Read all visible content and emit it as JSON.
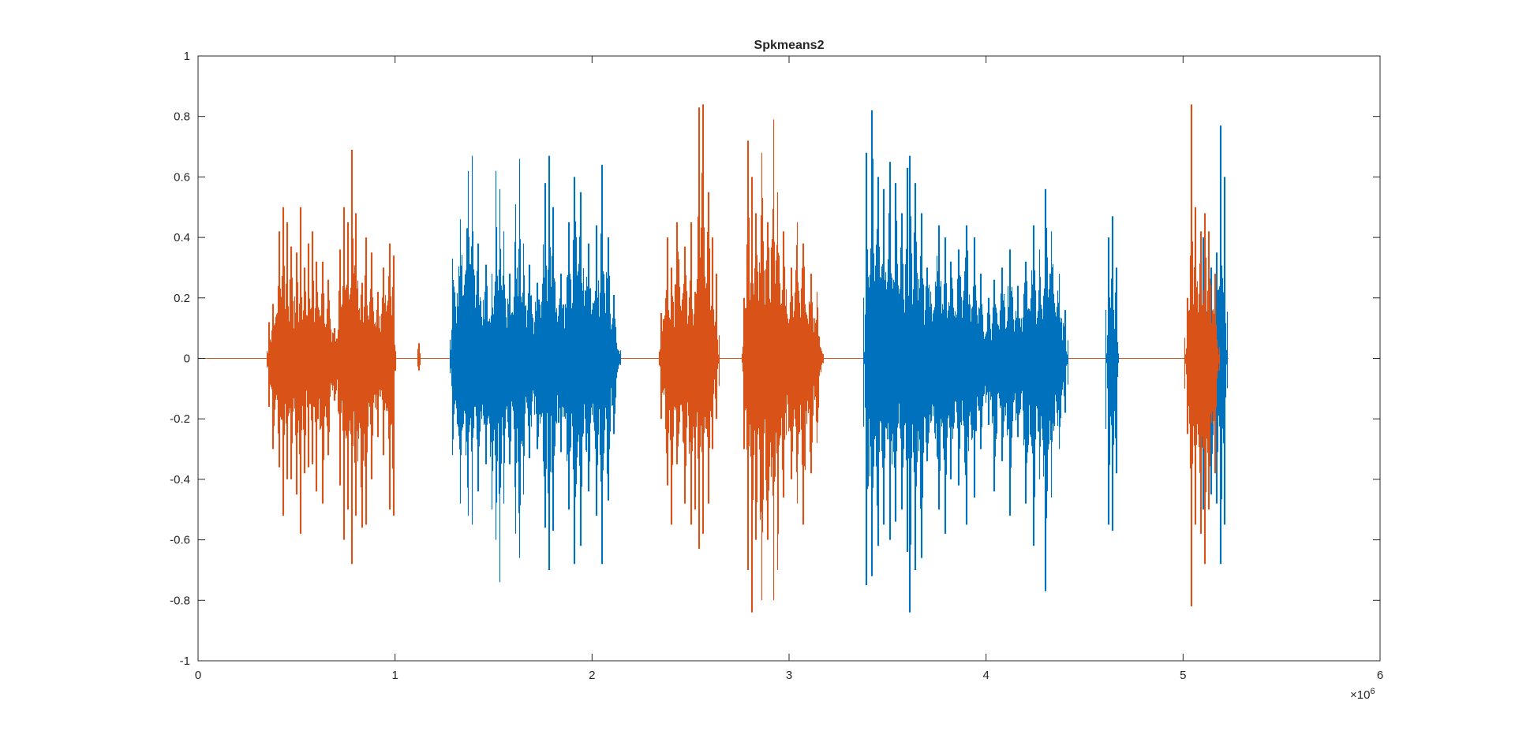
{
  "chart_data": {
    "type": "line",
    "title": "Spkmeans2",
    "xlabel": "",
    "ylabel": "",
    "xlim": [
      0,
      6000000
    ],
    "ylim": [
      -1,
      1
    ],
    "x_ticks": [
      0,
      1000000,
      2000000,
      3000000,
      4000000,
      5000000,
      6000000
    ],
    "x_tick_labels": [
      "0",
      "1",
      "2",
      "3",
      "4",
      "5",
      "6"
    ],
    "x_exponent_label": "×10",
    "x_exponent_power": "6",
    "y_ticks": [
      1,
      0.8,
      0.6,
      0.4,
      0.2,
      0,
      -0.2,
      -0.4,
      -0.6,
      -0.8,
      -1
    ],
    "y_tick_labels": [
      "1",
      "0.8",
      "0.6",
      "0.4",
      "0.2",
      "0",
      "-0.2",
      "-0.4",
      "-0.6",
      "-0.8",
      "-1"
    ],
    "grid": false,
    "box": true,
    "baseline": 0,
    "series": [
      {
        "color": "#0072BD",
        "segments": [
          {
            "start": 1280000,
            "end": 2140000,
            "peaks": [
              [
                1290000,
                0.33,
                -0.32
              ],
              [
                1330000,
                0.46,
                -0.48
              ],
              [
                1370000,
                0.62,
                -0.52
              ],
              [
                1390000,
                0.67,
                -0.55
              ],
              [
                1420000,
                0.38,
                -0.44
              ],
              [
                1460000,
                0.31,
                -0.35
              ],
              [
                1490000,
                0.28,
                -0.5
              ],
              [
                1510000,
                0.62,
                -0.6
              ],
              [
                1530000,
                0.56,
                -0.74
              ],
              [
                1550000,
                0.42,
                -0.48
              ],
              [
                1580000,
                0.28,
                -0.35
              ],
              [
                1610000,
                0.51,
                -0.58
              ],
              [
                1630000,
                0.66,
                -0.66
              ],
              [
                1650000,
                0.38,
                -0.45
              ],
              [
                1680000,
                0.31,
                -0.33
              ],
              [
                1720000,
                0.25,
                -0.3
              ],
              [
                1760000,
                0.58,
                -0.56
              ],
              [
                1780000,
                0.67,
                -0.7
              ],
              [
                1800000,
                0.5,
                -0.57
              ],
              [
                1840000,
                0.28,
                -0.31
              ],
              [
                1880000,
                0.45,
                -0.5
              ],
              [
                1910000,
                0.6,
                -0.68
              ],
              [
                1940000,
                0.55,
                -0.62
              ],
              [
                1980000,
                0.38,
                -0.44
              ],
              [
                2020000,
                0.44,
                -0.52
              ],
              [
                2050000,
                0.64,
                -0.68
              ],
              [
                2080000,
                0.4,
                -0.47
              ],
              [
                2110000,
                0.21,
                -0.25
              ]
            ]
          },
          {
            "start": 3380000,
            "end": 4410000,
            "peaks": [
              [
                3390000,
                0.68,
                -0.75
              ],
              [
                3420000,
                0.82,
                -0.72
              ],
              [
                3450000,
                0.6,
                -0.62
              ],
              [
                3480000,
                0.56,
                -0.55
              ],
              [
                3510000,
                0.65,
                -0.6
              ],
              [
                3540000,
                0.58,
                -0.54
              ],
              [
                3570000,
                0.48,
                -0.5
              ],
              [
                3600000,
                0.63,
                -0.64
              ],
              [
                3610000,
                0.67,
                -0.84
              ],
              [
                3640000,
                0.58,
                -0.7
              ],
              [
                3670000,
                0.48,
                -0.66
              ],
              [
                3700000,
                0.3,
                -0.34
              ],
              [
                3760000,
                0.44,
                -0.5
              ],
              [
                3790000,
                0.4,
                -0.58
              ],
              [
                3820000,
                0.32,
                -0.4
              ],
              [
                3860000,
                0.36,
                -0.42
              ],
              [
                3900000,
                0.44,
                -0.55
              ],
              [
                3940000,
                0.4,
                -0.46
              ],
              [
                3970000,
                0.28,
                -0.3
              ],
              [
                4010000,
                0.2,
                -0.22
              ],
              [
                4040000,
                0.26,
                -0.44
              ],
              [
                4080000,
                0.3,
                -0.34
              ],
              [
                4120000,
                0.36,
                -0.52
              ],
              [
                4160000,
                0.24,
                -0.26
              ],
              [
                4200000,
                0.32,
                -0.48
              ],
              [
                4240000,
                0.44,
                -0.62
              ],
              [
                4270000,
                0.36,
                -0.4
              ],
              [
                4300000,
                0.56,
                -0.77
              ],
              [
                4330000,
                0.42,
                -0.46
              ],
              [
                4370000,
                0.28,
                -0.3
              ],
              [
                4400000,
                0.16,
                -0.18
              ]
            ]
          },
          {
            "start": 4610000,
            "end": 4670000,
            "peaks": [
              [
                4620000,
                0.4,
                -0.55
              ],
              [
                4640000,
                0.47,
                -0.57
              ],
              [
                4660000,
                0.3,
                -0.38
              ]
            ]
          },
          {
            "start": 5080000,
            "end": 5220000,
            "peaks": [
              [
                5100000,
                0.4,
                -0.5
              ],
              [
                5140000,
                0.3,
                -0.45
              ],
              [
                5170000,
                0.35,
                -0.48
              ],
              [
                5190000,
                0.77,
                -0.68
              ],
              [
                5210000,
                0.6,
                -0.55
              ]
            ]
          }
        ]
      },
      {
        "color": "#D95319",
        "segments": [
          {
            "start": 350000,
            "end": 1000000,
            "peaks": [
              [
                360000,
                0.12,
                -0.16
              ],
              [
                380000,
                0.18,
                -0.3
              ],
              [
                410000,
                0.42,
                -0.36
              ],
              [
                430000,
                0.5,
                -0.52
              ],
              [
                450000,
                0.45,
                -0.4
              ],
              [
                470000,
                0.37,
                -0.4
              ],
              [
                500000,
                0.35,
                -0.45
              ],
              [
                520000,
                0.5,
                -0.58
              ],
              [
                540000,
                0.3,
                -0.38
              ],
              [
                560000,
                0.38,
                -0.36
              ],
              [
                580000,
                0.42,
                -0.35
              ],
              [
                600000,
                0.32,
                -0.44
              ],
              [
                630000,
                0.32,
                -0.48
              ],
              [
                660000,
                0.26,
                -0.32
              ],
              [
                690000,
                0.1,
                -0.14
              ],
              [
                720000,
                0.36,
                -0.42
              ],
              [
                740000,
                0.5,
                -0.6
              ],
              [
                760000,
                0.45,
                -0.5
              ],
              [
                780000,
                0.69,
                -0.68
              ],
              [
                800000,
                0.48,
                -0.52
              ],
              [
                830000,
                0.25,
                -0.56
              ],
              [
                850000,
                0.4,
                -0.55
              ],
              [
                880000,
                0.35,
                -0.4
              ],
              [
                910000,
                0.22,
                -0.26
              ],
              [
                940000,
                0.3,
                -0.32
              ],
              [
                970000,
                0.38,
                -0.5
              ],
              [
                990000,
                0.34,
                -0.52
              ]
            ]
          },
          {
            "start": 1115000,
            "end": 1125000,
            "peaks": [
              [
                1120000,
                0.05,
                -0.04
              ]
            ]
          },
          {
            "start": 2340000,
            "end": 2640000,
            "peaks": [
              [
                2350000,
                0.15,
                -0.2
              ],
              [
                2380000,
                0.4,
                -0.42
              ],
              [
                2400000,
                0.3,
                -0.55
              ],
              [
                2430000,
                0.45,
                -0.35
              ],
              [
                2470000,
                0.37,
                -0.48
              ],
              [
                2500000,
                0.45,
                -0.55
              ],
              [
                2520000,
                0.22,
                -0.5
              ],
              [
                2540000,
                0.83,
                -0.63
              ],
              [
                2560000,
                0.84,
                -0.58
              ],
              [
                2590000,
                0.55,
                -0.48
              ],
              [
                2610000,
                0.4,
                -0.3
              ],
              [
                2630000,
                0.28,
                -0.2
              ]
            ]
          },
          {
            "start": 2760000,
            "end": 3170000,
            "peaks": [
              [
                2770000,
                0.2,
                -0.3
              ],
              [
                2790000,
                0.72,
                -0.7
              ],
              [
                2810000,
                0.6,
                -0.84
              ],
              [
                2830000,
                0.48,
                -0.6
              ],
              [
                2860000,
                0.68,
                -0.8
              ],
              [
                2890000,
                0.45,
                -0.6
              ],
              [
                2920000,
                0.79,
                -0.8
              ],
              [
                2940000,
                0.55,
                -0.7
              ],
              [
                2970000,
                0.42,
                -0.46
              ],
              [
                3010000,
                0.3,
                -0.4
              ],
              [
                3040000,
                0.45,
                -0.48
              ],
              [
                3070000,
                0.38,
                -0.55
              ],
              [
                3110000,
                0.28,
                -0.38
              ],
              [
                3140000,
                0.22,
                -0.28
              ]
            ]
          },
          {
            "start": 5010000,
            "end": 5180000,
            "peaks": [
              [
                5020000,
                0.2,
                -0.25
              ],
              [
                5040000,
                0.84,
                -0.82
              ],
              [
                5060000,
                0.5,
                -0.55
              ],
              [
                5090000,
                0.42,
                -0.58
              ],
              [
                5110000,
                0.48,
                -0.68
              ],
              [
                5130000,
                0.42,
                -0.5
              ],
              [
                5160000,
                0.28,
                -0.38
              ]
            ]
          }
        ]
      }
    ]
  }
}
